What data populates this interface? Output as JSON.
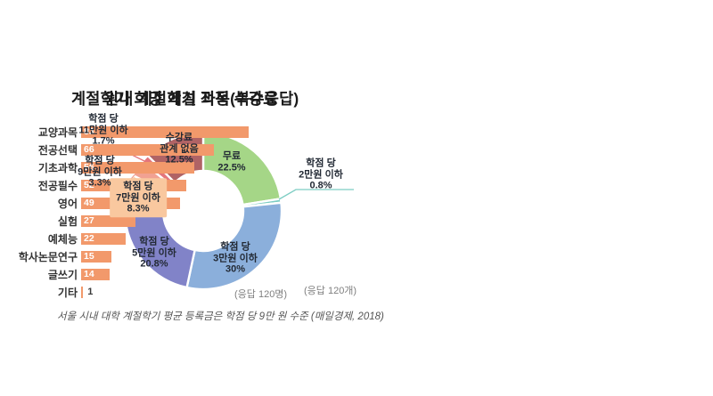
{
  "chart_data": [
    {
      "type": "pie",
      "subtype": "donut",
      "title": "원내 계절학기 적정 수강료",
      "note": "(응답 120개)",
      "footnote": "서울 시내 대학 계절학기 평균 등록금은 학점 당 9만 원 수준 (매일경제, 2018)",
      "start_angle_deg": 0,
      "clockwise": true,
      "slices": [
        {
          "name": "무료",
          "value": 22.5,
          "color": "#A5D687",
          "display": "무료\n22.5%"
        },
        {
          "name": "학점 당 2만원 이하",
          "value": 0.8,
          "color": "#7DCDC3",
          "display": "학점 당\n2만원 이하\n0.8%"
        },
        {
          "name": "학점 당 3만원 이하",
          "value": 30,
          "color": "#8BAFDB",
          "display": "학점 당\n3만원 이하\n30%"
        },
        {
          "name": "학점 당 5만원 이하",
          "value": 20.8,
          "color": "#8183C8",
          "display": "학점 당\n5만원 이하\n20.8%"
        },
        {
          "name": "학점 당 7만원 이하",
          "value": 8.3,
          "color": "#F9C89F",
          "display": "학점 당\n7만원 이하\n8.3%"
        },
        {
          "name": "학점 당 9만원 이하",
          "value": 3.3,
          "color": "#F1A192",
          "display": "학점 당\n9만원 이하\n3.3%"
        },
        {
          "name": "학점 당 11만원 이하",
          "value": 1.7,
          "color": "#E4757B",
          "display": "학점 당\n11만원 이하\n1.7%"
        },
        {
          "name": "수강료 관계 없음",
          "value": 12.5,
          "color": "#B06365",
          "display": "수강료\n관계 없음\n12.5%"
        }
      ]
    },
    {
      "type": "bar",
      "orientation": "horizontal",
      "title": "계절학기 희망 개설 과목(복수응답)",
      "note": "(응답 120명)",
      "bar_color": "#F2996B",
      "xlim": [
        0,
        90
      ],
      "categories": [
        "교양과목",
        "전공선택",
        "기초과학",
        "전공필수",
        "영어",
        "실험",
        "예체능",
        "학사논문연구",
        "글쓰기",
        "기타"
      ],
      "values": [
        83,
        66,
        56,
        52,
        49,
        27,
        22,
        15,
        14,
        1
      ]
    }
  ]
}
